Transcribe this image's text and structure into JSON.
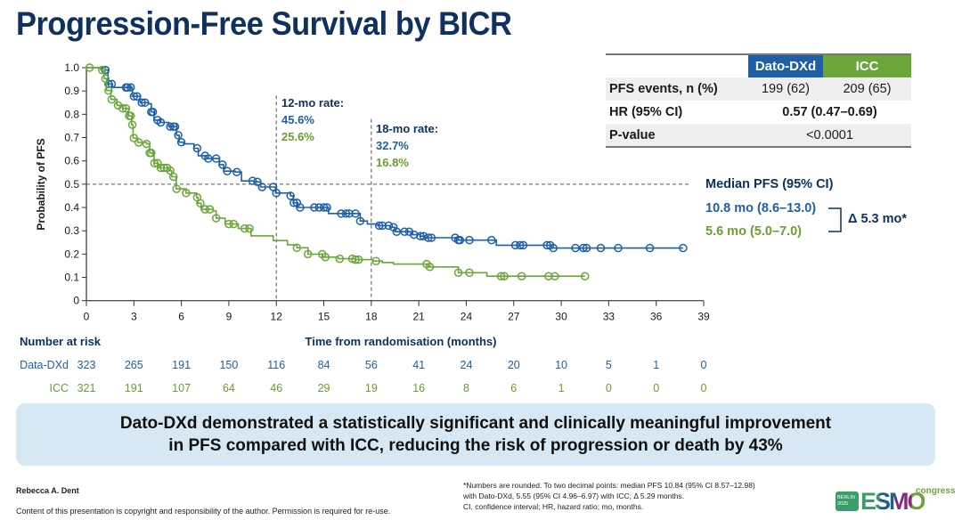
{
  "title": "Progression-Free Survival by BICR",
  "colors": {
    "dato": "#1f5fa8",
    "icc": "#6aa63a",
    "title": "#0f3160",
    "callout_bg": "#d5e8f3"
  },
  "chart_data": {
    "type": "line",
    "subtype": "kaplan-meier",
    "xlabel": "Time from randomisation (months)",
    "ylabel": "Probability of PFS",
    "xlim": [
      0,
      39
    ],
    "ylim": [
      0,
      1.0
    ],
    "xticks": [
      0,
      3,
      6,
      9,
      12,
      15,
      18,
      21,
      24,
      27,
      30,
      33,
      36,
      39
    ],
    "yticks": [
      "0",
      "0.1",
      "0.2",
      "0.3",
      "0.4",
      "0.5",
      "0.6",
      "0.7",
      "0.8",
      "0.9",
      "1.0"
    ],
    "reference_lines": {
      "horizontal_y": 0.5,
      "vertical_x": [
        12,
        18
      ]
    },
    "series": [
      {
        "name": "Dato-DXd",
        "color": "#1f5fa8",
        "points": [
          [
            0,
            1.0
          ],
          [
            1.2,
            0.99
          ],
          [
            1.37,
            0.93
          ],
          [
            1.65,
            0.915
          ],
          [
            2.9,
            0.877
          ],
          [
            3.4,
            0.85
          ],
          [
            3.93,
            0.845
          ],
          [
            4.1,
            0.81
          ],
          [
            4.27,
            0.775
          ],
          [
            4.64,
            0.765
          ],
          [
            5.2,
            0.747
          ],
          [
            5.7,
            0.71
          ],
          [
            5.86,
            0.68
          ],
          [
            6.14,
            0.673
          ],
          [
            6.8,
            0.654
          ],
          [
            7.07,
            0.622
          ],
          [
            7.6,
            0.61
          ],
          [
            8.4,
            0.584
          ],
          [
            8.67,
            0.556
          ],
          [
            9.4,
            0.552
          ],
          [
            9.8,
            0.514
          ],
          [
            10.6,
            0.51
          ],
          [
            11.0,
            0.488
          ],
          [
            11.95,
            0.462
          ],
          [
            12.9,
            0.45
          ],
          [
            13.07,
            0.42
          ],
          [
            13.35,
            0.4
          ],
          [
            15.3,
            0.374
          ],
          [
            17.3,
            0.342
          ],
          [
            17.75,
            0.329
          ],
          [
            18.4,
            0.322
          ],
          [
            19.2,
            0.315
          ],
          [
            19.5,
            0.296
          ],
          [
            20.6,
            0.283
          ],
          [
            21.1,
            0.277
          ],
          [
            21.4,
            0.27
          ],
          [
            23.4,
            0.26
          ],
          [
            25.9,
            0.238
          ],
          [
            29.4,
            0.226
          ],
          [
            37.7,
            0.226
          ]
        ],
        "censored": [
          1.2,
          1.4,
          1.6,
          2.5,
          2.6,
          2.8,
          3.0,
          3.2,
          3.5,
          3.7,
          4.1,
          4.2,
          4.5,
          4.7,
          5.3,
          5.5,
          5.6,
          5.8,
          6.0,
          7.0,
          7.5,
          7.7,
          8.2,
          8.6,
          8.9,
          9.5,
          10.5,
          10.8,
          11.1,
          11.8,
          12.0,
          12.9,
          13.1,
          13.3,
          13.5,
          14.4,
          14.7,
          15.0,
          15.2,
          16.1,
          16.4,
          16.6,
          17.0,
          17.3,
          18.5,
          18.7,
          19.1,
          19.4,
          19.6,
          20.1,
          20.4,
          20.7,
          21.1,
          21.3,
          21.6,
          21.8,
          23.3,
          23.5,
          23.6,
          24.2,
          25.6,
          27.1,
          27.4,
          27.6,
          29.1,
          29.3,
          29.5,
          30.9,
          31.4,
          31.6,
          32.5,
          33.6,
          35.6,
          37.7
        ]
      },
      {
        "name": "ICC",
        "color": "#6aa63a",
        "points": [
          [
            0,
            1.0
          ],
          [
            0.9,
            0.99
          ],
          [
            1.12,
            0.953
          ],
          [
            1.27,
            0.902
          ],
          [
            1.55,
            0.864
          ],
          [
            1.93,
            0.838
          ],
          [
            2.3,
            0.825
          ],
          [
            2.67,
            0.793
          ],
          [
            2.86,
            0.755
          ],
          [
            2.95,
            0.698
          ],
          [
            3.24,
            0.679
          ],
          [
            3.8,
            0.673
          ],
          [
            4.0,
            0.634
          ],
          [
            4.27,
            0.59
          ],
          [
            4.55,
            0.57
          ],
          [
            5.2,
            0.558
          ],
          [
            5.39,
            0.532
          ],
          [
            5.67,
            0.48
          ],
          [
            6.3,
            0.462
          ],
          [
            6.96,
            0.443
          ],
          [
            7.05,
            0.418
          ],
          [
            7.25,
            0.392
          ],
          [
            8.0,
            0.385
          ],
          [
            8.2,
            0.354
          ],
          [
            8.76,
            0.329
          ],
          [
            9.6,
            0.31
          ],
          [
            10.4,
            0.278
          ],
          [
            11.8,
            0.258
          ],
          [
            12.7,
            0.24
          ],
          [
            13.3,
            0.227
          ],
          [
            14.0,
            0.2
          ],
          [
            14.95,
            0.187
          ],
          [
            15.9,
            0.18
          ],
          [
            17.0,
            0.176
          ],
          [
            18.1,
            0.17
          ],
          [
            18.7,
            0.164
          ],
          [
            19.4,
            0.157
          ],
          [
            21.6,
            0.145
          ],
          [
            23.5,
            0.12
          ],
          [
            25.3,
            0.105
          ],
          [
            31.5,
            0.105
          ]
        ],
        "censored": [
          0.2,
          1.0,
          1.2,
          1.4,
          1.6,
          2.0,
          2.3,
          2.5,
          2.7,
          2.8,
          2.9,
          3.0,
          3.3,
          3.8,
          4.0,
          4.1,
          4.3,
          4.5,
          4.7,
          4.9,
          5.1,
          5.3,
          5.5,
          5.7,
          6.3,
          7.0,
          7.2,
          7.5,
          7.8,
          8.2,
          9.0,
          9.3,
          10.0,
          10.3,
          13.3,
          14.0,
          14.9,
          15.1,
          16.0,
          16.8,
          17.0,
          17.2,
          18.3,
          21.5,
          21.7,
          23.5,
          24.2,
          26.2,
          26.4,
          27.5,
          29.2,
          29.6,
          31.5
        ]
      }
    ],
    "annotations": {
      "rate12": {
        "label": "12-mo rate:",
        "dato": "45.6%",
        "icc": "25.6%"
      },
      "rate18": {
        "label": "18-mo rate:",
        "dato": "32.7%",
        "icc": "16.8%"
      },
      "median": {
        "label": "Median PFS (95% CI)",
        "dato": "10.8 mo (8.6–13.0)",
        "icc": "5.6 mo (5.0–7.0)",
        "delta": "Δ 5.3 mo*"
      }
    }
  },
  "stats_table": {
    "headers": [
      "",
      "Dato-DXd",
      "ICC"
    ],
    "rows": [
      {
        "label": "PFS events, n (%)",
        "dato": "199 (62)",
        "icc": "209 (65)"
      },
      {
        "label": "HR (95% CI)",
        "value": "0.57 (0.47–0.69)"
      },
      {
        "label": "P-value",
        "value": "<0.0001"
      }
    ]
  },
  "risk_table": {
    "title": "Number at risk",
    "rows": [
      {
        "label": "Data-DXd",
        "values": [
          "323",
          "265",
          "191",
          "150",
          "116",
          "84",
          "56",
          "41",
          "24",
          "20",
          "10",
          "5",
          "1",
          "0"
        ]
      },
      {
        "label": "ICC",
        "values": [
          "321",
          "191",
          "107",
          "64",
          "46",
          "29",
          "19",
          "16",
          "8",
          "6",
          "1",
          "0",
          "0",
          "0"
        ]
      }
    ]
  },
  "callout": {
    "line1": "Dato-DXd demonstrated a statistically significant and clinically meaningful improvement",
    "line2": "in PFS compared with ICC, reducing the risk of progression or death by 43%"
  },
  "footer": {
    "author": "Rebecca A. Dent",
    "copyright": "Content of this presentation is copyright and responsibility of the author. Permission is required for re-use.",
    "note1": "*Numbers are rounded. To two decimal points: median PFS 10.84 (95% CI 8.57–12.98)",
    "note2": "with Dato-DXd, 5.55 (95% CI 4.96–6.97) with ICC; Δ 5.29 months.",
    "note3": "CI, confidence interval; HR, hazard ratio; mo, months.",
    "logo": {
      "city": "BERLIN",
      "year": "2025",
      "brand": "ESMO",
      "suffix": "congress"
    }
  }
}
